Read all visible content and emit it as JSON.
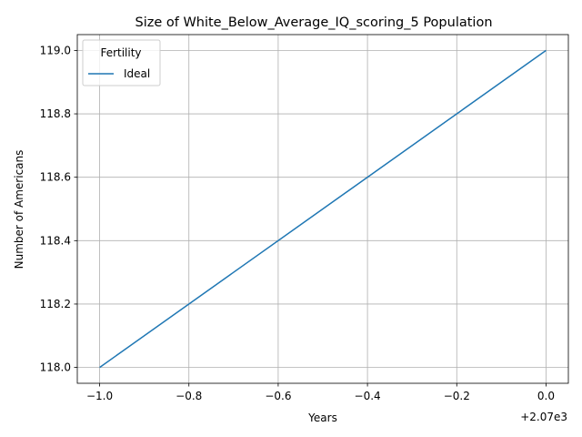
{
  "chart_data": {
    "type": "line",
    "title": "Size of White_Below_Average_IQ_scoring_5 Population",
    "xlabel": "Years",
    "ylabel": "Number of Americans",
    "x_offset_label": "+2.07e3",
    "x_tick_values": [
      -1.0,
      -0.8,
      -0.6,
      -0.4,
      -0.2,
      0.0
    ],
    "x_tick_labels": [
      "−1.0",
      "−0.8",
      "−0.6",
      "−0.4",
      "−0.2",
      "0.0"
    ],
    "y_tick_values": [
      118.0,
      118.2,
      118.4,
      118.6,
      118.8,
      119.0
    ],
    "y_tick_labels": [
      "118.0",
      "118.2",
      "118.4",
      "118.6",
      "118.8",
      "119.0"
    ],
    "xlim": [
      -1.05,
      0.05
    ],
    "ylim": [
      117.95,
      119.05
    ],
    "grid": true,
    "legend": {
      "title": "Fertility",
      "placement": "upper-left"
    },
    "series": [
      {
        "name": "Ideal",
        "color": "#1f77b4",
        "x": [
          -1.0,
          0.0
        ],
        "y": [
          118.0,
          119.0
        ]
      }
    ]
  }
}
